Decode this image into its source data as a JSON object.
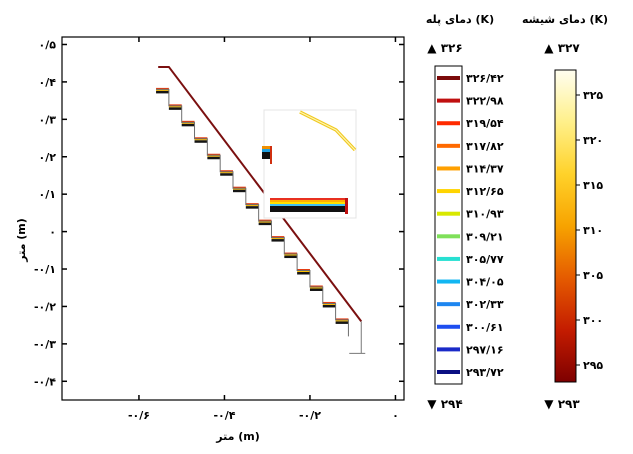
{
  "chart_data": {
    "type": "line",
    "xlabel": "متر (m)",
    "ylabel": "متر (m)",
    "x_ticks": [
      "-۰/۶",
      "-۰/۴",
      "-۰/۲",
      "۰"
    ],
    "x_tick_values": [
      -0.6,
      -0.4,
      -0.2,
      0
    ],
    "y_ticks": [
      "۰/۵",
      "۰/۴",
      "۰/۳",
      "۰/۲",
      "۰/۱",
      "۰",
      "-۰/۱",
      "-۰/۲",
      "-۰/۳",
      "-۰/۴"
    ],
    "y_tick_values": [
      0.5,
      0.4,
      0.3,
      0.2,
      0.1,
      0,
      -0.1,
      -0.2,
      -0.3,
      -0.4
    ],
    "xlim": [
      -0.78,
      0.02
    ],
    "ylim": [
      -0.45,
      0.52
    ],
    "roof_line": [
      [
        -0.555,
        0.44
      ],
      [
        -0.53,
        0.44
      ],
      [
        -0.08,
        -0.24
      ]
    ],
    "stairs": {
      "steps": 15,
      "x_start": -0.56,
      "x_end": -0.11,
      "y_start": 0.38,
      "y_end": -0.28
    },
    "legends": [
      {
        "title": "دمای پله (K)",
        "max": "▲ ۳۲۶",
        "min": "▼ ۲۹۴",
        "ticks": [
          "۳۲۶/۴۲",
          "۳۲۲/۹۸",
          "۳۱۹/۵۴",
          "۳۱۷/۸۲",
          "۳۱۴/۳۷",
          "۳۱۲/۶۵",
          "۳۱۰/۹۳",
          "۳۰۹/۲۱",
          "۳۰۵/۷۷",
          "۳۰۴/۰۵",
          "۳۰۲/۳۳",
          "۳۰۰/۶۱",
          "۲۹۷/۱۶",
          "۲۹۳/۷۲"
        ],
        "colors": [
          "#7b0a0a",
          "#c01010",
          "#ff2a00",
          "#ff6a00",
          "#ffa000",
          "#ffd400",
          "#d8e800",
          "#7fe05a",
          "#27e0d2",
          "#12b6f2",
          "#1e86f0",
          "#1e4ef0",
          "#1a2ac8",
          "#0a0f82"
        ]
      },
      {
        "title": "دمای شیشه (K)",
        "max": "▲ ۳۲۷",
        "min": "▼ ۲۹۳",
        "ticks": [
          "۳۲۵",
          "۳۲۰",
          "۳۱۵",
          "۳۱۰",
          "۳۰۵",
          "۳۰۰",
          "۲۹۵"
        ],
        "colors": [
          "#fffef0",
          "#fff08a",
          "#ffd22a",
          "#f7a300",
          "#e55b00",
          "#c41c00",
          "#7e0000"
        ]
      }
    ]
  }
}
